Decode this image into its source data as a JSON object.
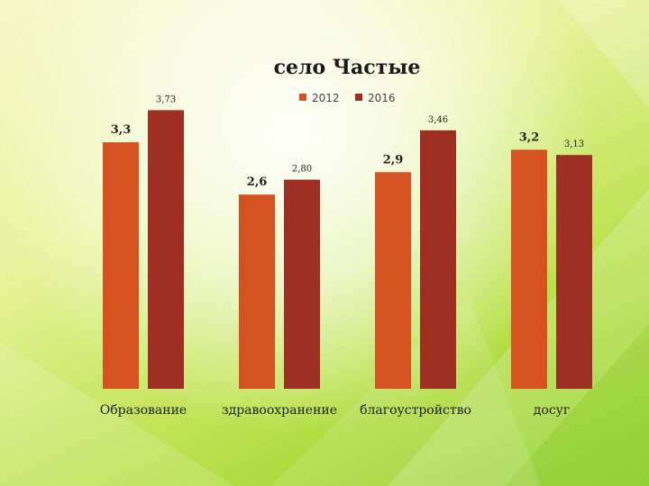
{
  "chart_data": {
    "type": "bar",
    "title": "село Частые",
    "categories": [
      "Образование",
      "здравоохранение",
      "благоустройство",
      "досуг"
    ],
    "series": [
      {
        "name": "2012",
        "color": "#d65120",
        "values": [
          3.3,
          2.6,
          2.9,
          3.2
        ],
        "labels": [
          "3,3",
          "2,6",
          "2,9",
          "3,2"
        ]
      },
      {
        "name": "2016",
        "color": "#9e2f22",
        "values": [
          3.73,
          2.8,
          3.46,
          3.13
        ],
        "labels": [
          "3,73",
          "2,80",
          "3,46",
          "3,13"
        ]
      }
    ],
    "ylim": [
      0,
      4
    ],
    "legend_position": "top",
    "grid": false
  }
}
